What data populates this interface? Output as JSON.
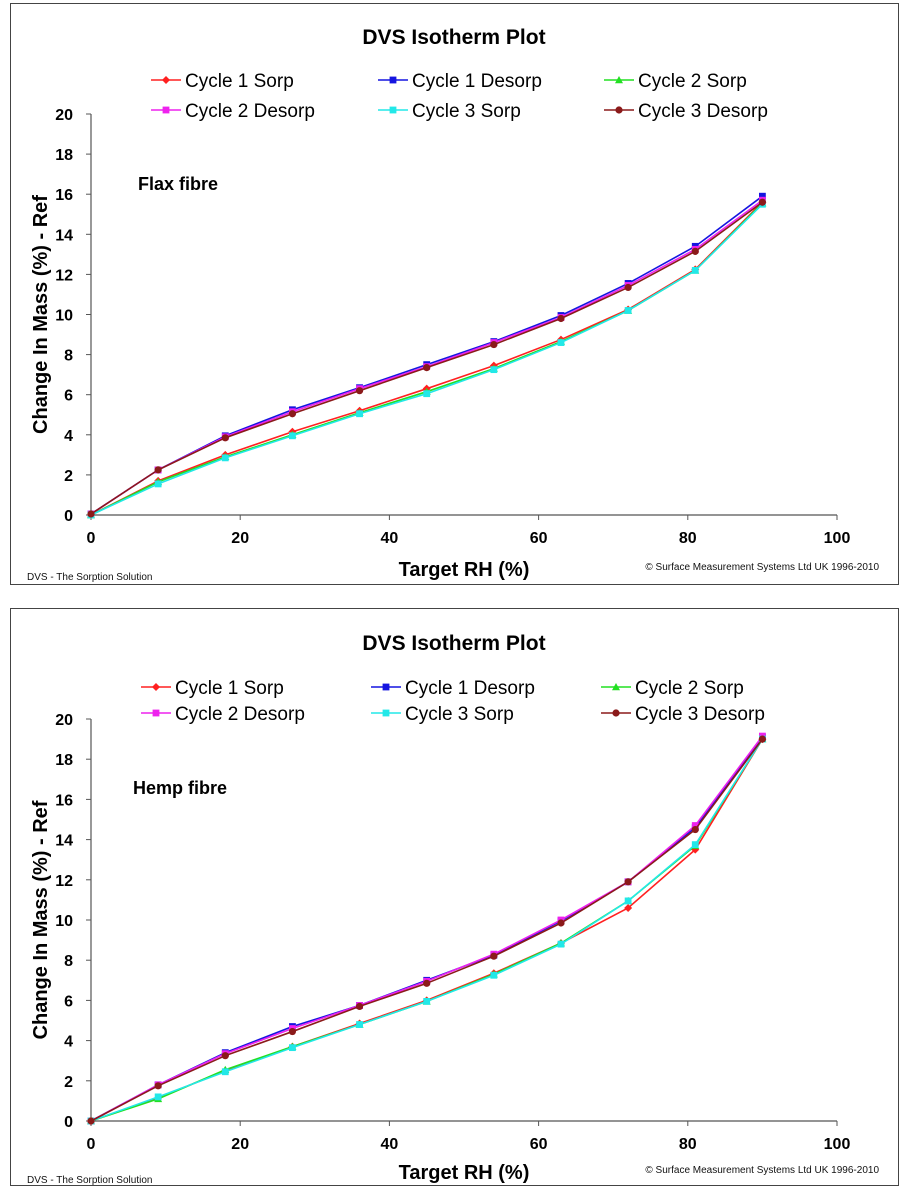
{
  "chart_data": [
    {
      "type": "line",
      "title": "DVS Isotherm Plot",
      "annotation": "Flax fibre",
      "xlabel": "Target RH (%)",
      "ylabel": "Change In Mass (%) - Ref",
      "xlim": [
        0,
        100
      ],
      "ylim": [
        0,
        20
      ],
      "x_ticks": [
        0,
        20,
        40,
        60,
        80,
        100
      ],
      "y_ticks": [
        0,
        2,
        4,
        6,
        8,
        10,
        12,
        14,
        16,
        18,
        20
      ],
      "grid": false,
      "legend_placement": "top",
      "footer_left": "DVS - The Sorption Solution",
      "footer_right": "© Surface Measurement Systems Ltd UK 1996-2010",
      "x": [
        0,
        9,
        18,
        27,
        36,
        45,
        54,
        63,
        72,
        81,
        90
      ],
      "series": [
        {
          "name": "Cycle 1 Sorp",
          "color": "#ff2020",
          "marker": "diamond",
          "values": [
            0,
            1.7,
            3.0,
            4.15,
            5.2,
            6.3,
            7.45,
            8.75,
            10.25,
            12.25,
            15.6
          ]
        },
        {
          "name": "Cycle 1 Desorp",
          "color": "#1515e0",
          "marker": "square",
          "values": [
            0.05,
            2.25,
            3.95,
            5.25,
            6.35,
            7.5,
            8.65,
            9.95,
            11.55,
            13.4,
            15.9
          ]
        },
        {
          "name": "Cycle 2 Sorp",
          "color": "#22e022",
          "marker": "triangle",
          "values": [
            0,
            1.65,
            2.9,
            4.0,
            5.1,
            6.15,
            7.3,
            8.65,
            10.2,
            12.2,
            15.55
          ]
        },
        {
          "name": "Cycle 2 Desorp",
          "color": "#ee22ee",
          "marker": "square",
          "values": [
            0.05,
            2.25,
            3.9,
            5.15,
            6.3,
            7.4,
            8.6,
            9.85,
            11.45,
            13.25,
            15.7
          ]
        },
        {
          "name": "Cycle 3 Sorp",
          "color": "#22e8e8",
          "marker": "square",
          "values": [
            0,
            1.55,
            2.85,
            3.95,
            5.05,
            6.05,
            7.25,
            8.6,
            10.2,
            12.2,
            15.5
          ]
        },
        {
          "name": "Cycle 3 Desorp",
          "color": "#8b1a1a",
          "marker": "circle",
          "values": [
            0.05,
            2.25,
            3.85,
            5.05,
            6.2,
            7.35,
            8.5,
            9.8,
            11.35,
            13.15,
            15.6
          ]
        }
      ]
    },
    {
      "type": "line",
      "title": "DVS Isotherm Plot",
      "annotation": "Hemp fibre",
      "xlabel": "Target RH (%)",
      "ylabel": "Change In Mass (%) - Ref",
      "xlim": [
        0,
        100
      ],
      "ylim": [
        0,
        20
      ],
      "x_ticks": [
        0,
        20,
        40,
        60,
        80,
        100
      ],
      "y_ticks": [
        0,
        2,
        4,
        6,
        8,
        10,
        12,
        14,
        16,
        18,
        20
      ],
      "grid": false,
      "legend_placement": "top",
      "footer_left": "DVS - The Sorption Solution",
      "footer_right": "© Surface Measurement Systems Ltd UK 1996-2010",
      "x": [
        0,
        9,
        18,
        27,
        36,
        45,
        54,
        63,
        72,
        81,
        90
      ],
      "series": [
        {
          "name": "Cycle 1 Sorp",
          "color": "#ff2020",
          "marker": "diamond",
          "values": [
            0,
            1.15,
            2.5,
            3.7,
            4.85,
            6.0,
            7.35,
            8.85,
            10.6,
            13.5,
            19.0
          ]
        },
        {
          "name": "Cycle 1 Desorp",
          "color": "#1515e0",
          "marker": "square",
          "values": [
            0,
            1.8,
            3.4,
            4.7,
            5.75,
            7.0,
            8.25,
            9.95,
            11.9,
            14.6,
            19.1
          ]
        },
        {
          "name": "Cycle 2 Sorp",
          "color": "#22e022",
          "marker": "triangle",
          "values": [
            0,
            1.1,
            2.55,
            3.7,
            4.8,
            5.95,
            7.3,
            8.85,
            10.95,
            13.7,
            19.0
          ]
        },
        {
          "name": "Cycle 2 Desorp",
          "color": "#ee22ee",
          "marker": "square",
          "values": [
            0,
            1.8,
            3.35,
            4.6,
            5.75,
            6.95,
            8.3,
            10.0,
            11.9,
            14.7,
            19.15
          ]
        },
        {
          "name": "Cycle 3 Sorp",
          "color": "#22e8e8",
          "marker": "square",
          "values": [
            0,
            1.2,
            2.45,
            3.65,
            4.8,
            5.95,
            7.25,
            8.8,
            10.95,
            13.75,
            19.0
          ]
        },
        {
          "name": "Cycle 3 Desorp",
          "color": "#8b1a1a",
          "marker": "circle",
          "values": [
            0,
            1.75,
            3.25,
            4.45,
            5.7,
            6.85,
            8.2,
            9.85,
            11.9,
            14.5,
            19.0
          ]
        }
      ]
    }
  ]
}
